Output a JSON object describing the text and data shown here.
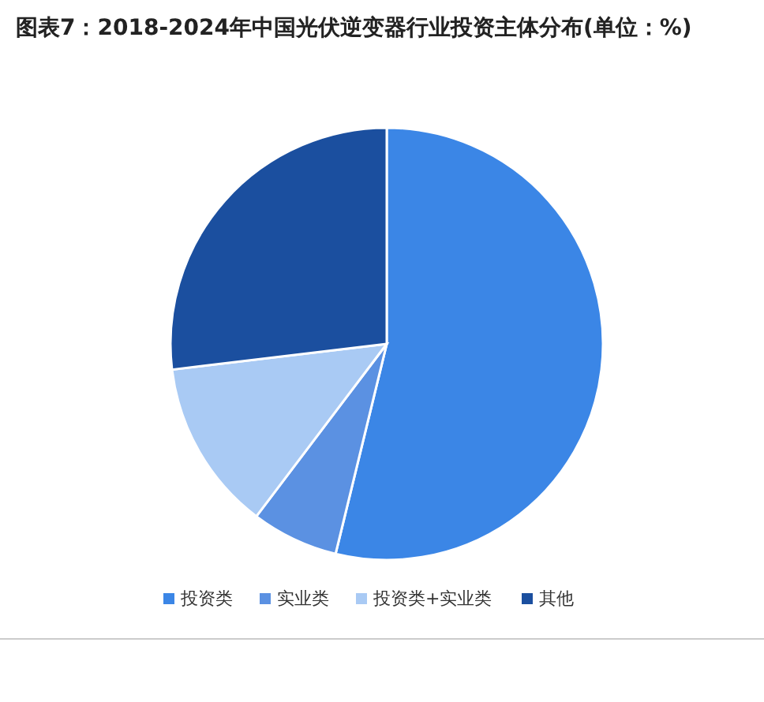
{
  "chart_data": {
    "type": "pie",
    "title": "图表7：2018-2024年中国光伏逆变器行业投资主体分布(单位：%)",
    "categories": [
      "投资类",
      "实业类",
      "投资类+实业类",
      "其他"
    ],
    "values": [
      53.8,
      6.5,
      12.8,
      26.9
    ],
    "colors": [
      "#3b86e6",
      "#5b91e2",
      "#a9caf4",
      "#1b4f9f"
    ],
    "legend": "bottom"
  }
}
